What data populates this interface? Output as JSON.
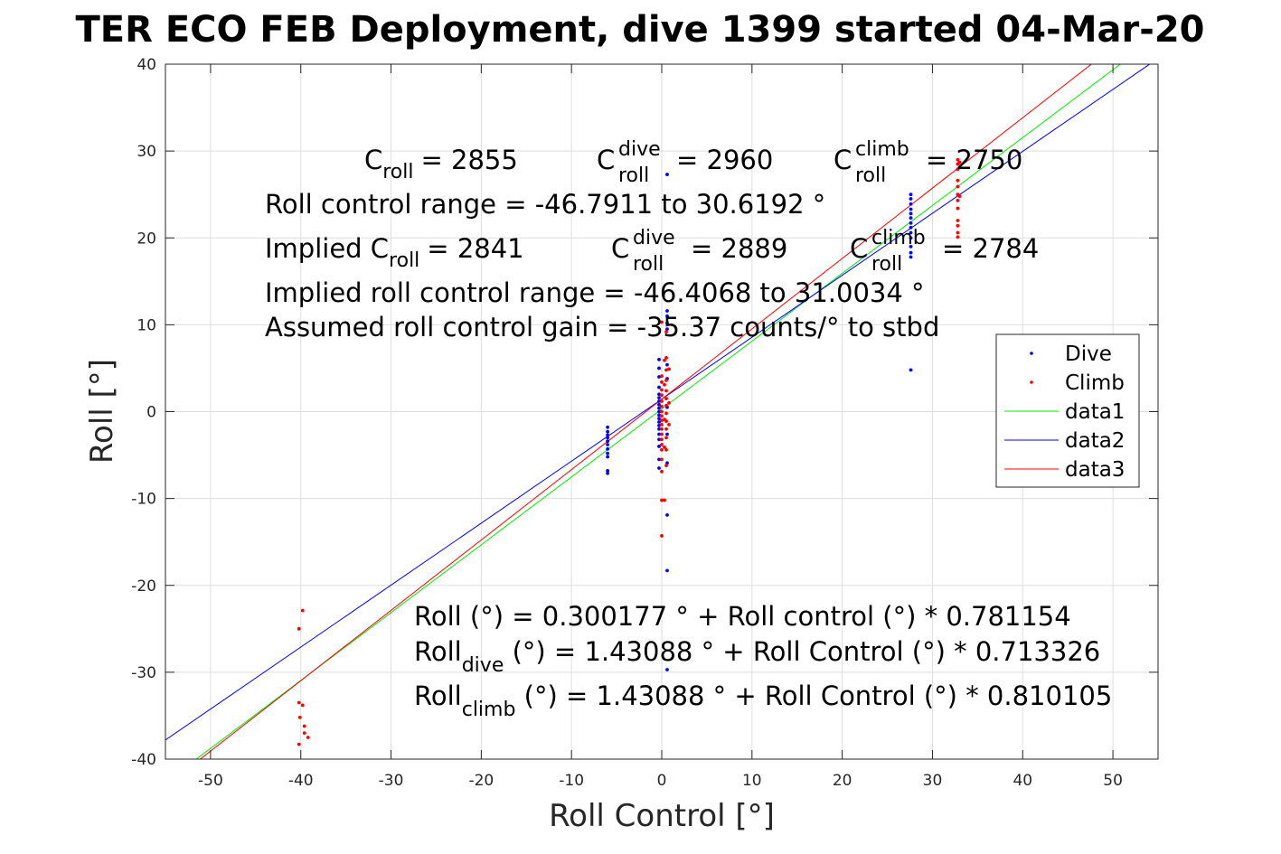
{
  "chart_data": {
    "type": "scatter",
    "title": "TER ECO FEB Deployment, dive 1399 started 04-Mar-20",
    "xlabel": "Roll Control [°]",
    "ylabel": "Roll [°]",
    "xlim": [
      -55,
      55
    ],
    "ylim": [
      -40,
      40
    ],
    "xticks": [
      -50,
      -40,
      -30,
      -20,
      -10,
      0,
      10,
      20,
      30,
      40,
      50
    ],
    "yticks": [
      -40,
      -30,
      -20,
      -10,
      0,
      10,
      20,
      30,
      40
    ],
    "xtick_labels": [
      "-50",
      "-40",
      "-30",
      "-20",
      "-10",
      "0",
      "10",
      "20",
      "30",
      "40",
      "50"
    ],
    "ytick_labels": [
      "-40",
      "-30",
      "-20",
      "-10",
      "0",
      "10",
      "20",
      "30",
      "40"
    ],
    "grid": true,
    "legend_position": "right",
    "series": [
      {
        "name": "Dive",
        "kind": "points",
        "color": "#0000ff",
        "points": [
          [
            -6,
            -1.8
          ],
          [
            -6,
            -2.3
          ],
          [
            -6,
            -2.7
          ],
          [
            -6,
            -3.0
          ],
          [
            -6,
            -3.4
          ],
          [
            -6,
            -3.8
          ],
          [
            -6,
            -4.3
          ],
          [
            -6,
            -4.8
          ],
          [
            -6,
            -5.2
          ],
          [
            -6,
            -6.8
          ],
          [
            -6,
            -7.1
          ],
          [
            -0.3,
            6.0
          ],
          [
            -0.3,
            5.0
          ],
          [
            -0.3,
            4.0
          ],
          [
            -0.3,
            2.8
          ],
          [
            -0.3,
            2.0
          ],
          [
            -0.3,
            1.6
          ],
          [
            -0.3,
            1.2
          ],
          [
            -0.3,
            0.8
          ],
          [
            -0.3,
            0.4
          ],
          [
            -0.3,
            0.0
          ],
          [
            -0.3,
            -0.4
          ],
          [
            -0.3,
            -0.8
          ],
          [
            -0.3,
            -1.2
          ],
          [
            -0.3,
            -1.6
          ],
          [
            -0.3,
            -2.0
          ],
          [
            -0.3,
            -2.6
          ],
          [
            -0.3,
            -3.2
          ],
          [
            -0.3,
            -4.0
          ],
          [
            -0.3,
            -5.5
          ],
          [
            -0.3,
            -6.5
          ],
          [
            0.6,
            27.3
          ],
          [
            0.6,
            11.6
          ],
          [
            0.6,
            11.0
          ],
          [
            0.6,
            10.2
          ],
          [
            0.6,
            9.5
          ],
          [
            0.6,
            5.4
          ],
          [
            0.6,
            3.8
          ],
          [
            0.6,
            0.5
          ],
          [
            0.6,
            -2.6
          ],
          [
            0.6,
            -5.9
          ],
          [
            0.6,
            -11.9
          ],
          [
            0.6,
            -18.3
          ],
          [
            0.6,
            -29.7
          ],
          [
            27.6,
            25.0
          ],
          [
            27.6,
            24.5
          ],
          [
            27.6,
            23.9
          ],
          [
            27.6,
            23.3
          ],
          [
            27.6,
            22.8
          ],
          [
            27.6,
            22.3
          ],
          [
            27.6,
            21.7
          ],
          [
            27.6,
            21.2
          ],
          [
            27.6,
            20.6
          ],
          [
            27.6,
            20.0
          ],
          [
            27.6,
            19.0
          ],
          [
            27.6,
            18.3
          ],
          [
            27.6,
            17.8
          ],
          [
            27.6,
            4.8
          ]
        ]
      },
      {
        "name": "Climb",
        "kind": "points",
        "color": "#ff0000",
        "points": [
          [
            -39.8,
            -22.9
          ],
          [
            -40.2,
            -25.0
          ],
          [
            -40.2,
            -33.5
          ],
          [
            -39.8,
            -33.8
          ],
          [
            -40.1,
            -35.2
          ],
          [
            -39.6,
            -36.2
          ],
          [
            -39.6,
            -37.0
          ],
          [
            -39.2,
            -37.5
          ],
          [
            -40.2,
            -38.3
          ],
          [
            0.0,
            10.3
          ],
          [
            0.0,
            4.1
          ],
          [
            0.0,
            3.4
          ],
          [
            0.0,
            2.5
          ],
          [
            0.0,
            1.9
          ],
          [
            0.0,
            1.2
          ],
          [
            0.0,
            0.6
          ],
          [
            0.0,
            0.0
          ],
          [
            0.0,
            -0.5
          ],
          [
            0.0,
            -1.0
          ],
          [
            0.0,
            -1.5
          ],
          [
            0.0,
            -2.0
          ],
          [
            0.0,
            -2.6
          ],
          [
            0.0,
            -3.2
          ],
          [
            0.0,
            -3.8
          ],
          [
            0.0,
            -4.4
          ],
          [
            0.0,
            -5.5
          ],
          [
            0.0,
            -6.9
          ],
          [
            0.0,
            -10.2
          ],
          [
            0.0,
            -14.3
          ],
          [
            0.5,
            9.2
          ],
          [
            0.5,
            6.2
          ],
          [
            0.5,
            4.8
          ],
          [
            0.5,
            3.6
          ],
          [
            0.5,
            2.4
          ],
          [
            0.5,
            1.5
          ],
          [
            0.5,
            0.7
          ],
          [
            0.5,
            -0.2
          ],
          [
            0.5,
            -1.1
          ],
          [
            0.5,
            -2.0
          ],
          [
            0.5,
            -3.0
          ],
          [
            0.5,
            -4.4
          ],
          [
            0.5,
            -6.2
          ],
          [
            0.3,
            5.9
          ],
          [
            0.3,
            3.1
          ],
          [
            0.3,
            -0.9
          ],
          [
            0.3,
            -4.1
          ],
          [
            0.3,
            -10.2
          ],
          [
            0.8,
            4.9
          ],
          [
            0.8,
            1.0
          ],
          [
            0.8,
            -1.5
          ],
          [
            32.8,
            29.0
          ],
          [
            32.8,
            28.5
          ],
          [
            32.8,
            27.9
          ],
          [
            32.8,
            26.6
          ],
          [
            32.8,
            25.9
          ],
          [
            32.8,
            25.0
          ],
          [
            32.8,
            24.3
          ],
          [
            32.8,
            23.4
          ],
          [
            32.8,
            22.0
          ],
          [
            32.8,
            21.4
          ],
          [
            32.8,
            20.6
          ],
          [
            32.8,
            20.1
          ],
          [
            33.0,
            28.7
          ],
          [
            33.0,
            24.8
          ]
        ]
      },
      {
        "name": "data1",
        "kind": "line",
        "color": "#00ee00",
        "intercept": 0.300177,
        "slope": 0.781154
      },
      {
        "name": "data2",
        "kind": "line",
        "color": "#0000ff",
        "intercept": 1.43088,
        "slope": 0.713326
      },
      {
        "name": "data3",
        "kind": "line",
        "color": "#ff0000",
        "intercept": 1.43088,
        "slope": 0.810105
      }
    ],
    "annotations": {
      "c_roll_label": "C",
      "c_roll_sub": "roll",
      "c_roll_value": "= 2855",
      "c_dive_label": "C",
      "c_dive_sup": "dive",
      "c_dive_sub": "roll",
      "c_dive_value": "= 2960",
      "c_climb_label": "C",
      "c_climb_sup": "climb",
      "c_climb_sub": "roll",
      "c_climb_value": "= 2750",
      "roll_range": "Roll control range = -46.7911 to 30.6192 °",
      "implied_label": "Implied C",
      "implied_sub": "roll",
      "implied_value": "= 2841",
      "implied_dive_label": "C",
      "implied_dive_sup": "dive",
      "implied_dive_sub": "roll",
      "implied_dive_value": "= 2889",
      "implied_climb_label": "C",
      "implied_climb_sup": "climb",
      "implied_climb_sub": "roll",
      "implied_climb_value": "= 2784",
      "implied_range": "Implied roll control range = -46.4068 to 31.0034 °",
      "gain": "Assumed roll control gain = -35.37 counts/° to stbd",
      "eq_all": "Roll (°) = 0.300177 ° + Roll control (°) * 0.781154",
      "eq_dive_label": "Roll",
      "eq_dive_sub": "dive",
      "eq_dive_rest": " (°) = 1.43088 ° + Roll Control (°) * 0.713326",
      "eq_climb_label": "Roll",
      "eq_climb_sub": "climb",
      "eq_climb_rest": " (°) = 1.43088 ° + Roll Control (°) * 0.810105"
    }
  }
}
